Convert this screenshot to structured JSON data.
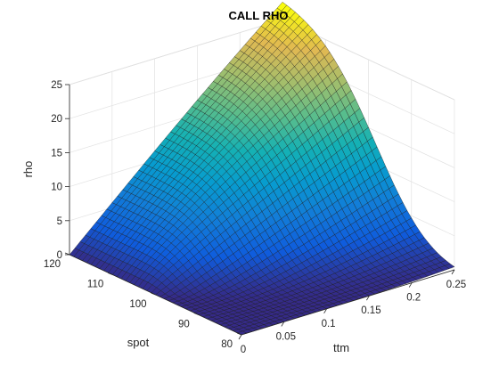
{
  "chart_data": {
    "type": "surface",
    "title": "CALL RHO",
    "xlabel": "ttm",
    "ylabel": "spot",
    "zlabel": "rho",
    "x_range": [
      0,
      0.25
    ],
    "y_range": [
      80,
      120
    ],
    "z_range": [
      0,
      25
    ],
    "x_ticks": [
      0,
      0.05,
      0.1,
      0.15,
      0.2,
      0.25
    ],
    "x_tick_labels": [
      "0",
      "0.05",
      "0.1",
      "0.15",
      "0.2",
      "0.25"
    ],
    "y_ticks": [
      80,
      90,
      100,
      110,
      120
    ],
    "y_tick_labels": [
      "80",
      "90",
      "100",
      "110",
      "120"
    ],
    "z_ticks": [
      0,
      5,
      10,
      15,
      20,
      25
    ],
    "z_tick_labels": [
      "0",
      "5",
      "10",
      "15",
      "20",
      "25"
    ],
    "grid": true,
    "colormap": "parula",
    "surface_samples": {
      "description_of_axes": "rho value at selected (spot, ttm) points read from the surface",
      "points": [
        {
          "spot": 80,
          "ttm": 0,
          "rho": 0
        },
        {
          "spot": 80,
          "ttm": 0.25,
          "rho": 0.3
        },
        {
          "spot": 100,
          "ttm": 0.05,
          "rho": 2.8
        },
        {
          "spot": 100,
          "ttm": 0.15,
          "rho": 7.5
        },
        {
          "spot": 100,
          "ttm": 0.25,
          "rho": 13.3
        },
        {
          "spot": 120,
          "ttm": 0,
          "rho": 0.2
        },
        {
          "spot": 120,
          "ttm": 0.1,
          "rho": 11
        },
        {
          "spot": 120,
          "ttm": 0.25,
          "rho": 28.6
        }
      ]
    }
  }
}
